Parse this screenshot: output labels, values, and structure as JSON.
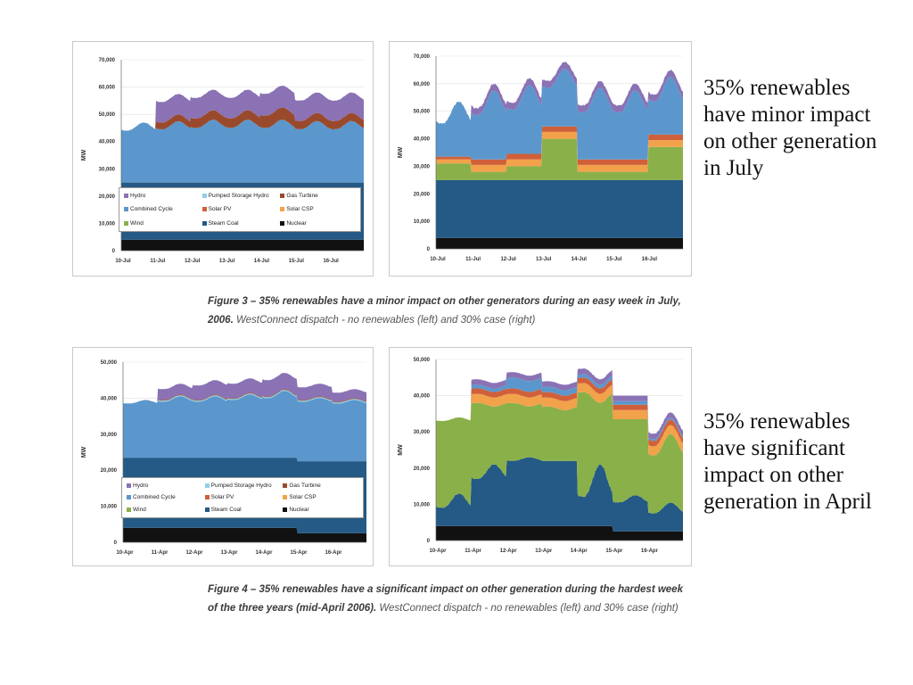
{
  "colors": {
    "nuclear": "#111111",
    "steam_coal": "#245a85",
    "wind": "#8ab04a",
    "solar_csp": "#f2a24a",
    "solar_pv": "#d0603a",
    "combined_cycle": "#5b97cc",
    "gas_turbine": "#9a4a2c",
    "pumped_storage": "#8fd0e8",
    "hydro": "#8a72b4"
  },
  "legend_items": [
    "Hydro",
    "Pumped Storage Hydro",
    "Gas Turbine",
    "Combined Cycle",
    "Solar PV",
    "Solar CSP",
    "Wind",
    "Steam Coal",
    "Nuclear"
  ],
  "legend_keys": [
    "hydro",
    "pumped_storage",
    "gas_turbine",
    "combined_cycle",
    "solar_pv",
    "solar_csp",
    "wind",
    "steam_coal",
    "nuclear"
  ],
  "figure3": {
    "caption_bold": "Figure 3 – 35% renewables have a minor impact on other generators during an easy week in July, 2006.",
    "caption_rest": " WestConnect dispatch - no renewables (left) and 30% case (right)"
  },
  "figure4": {
    "caption_bold": "Figure 4 – 35% renewables have a significant impact on other generation during the hardest week of the three years (mid-April 2006).",
    "caption_rest": " WestConnect dispatch - no renewables (left) and 30% case (right)"
  },
  "side_notes": {
    "july": "35% renewables have minor impact on other generation in July",
    "april": "35% renewables have significant impact on other generation in April"
  },
  "chart_data": [
    {
      "type": "area",
      "ylabel": "MW",
      "ylim": [
        0,
        70000
      ],
      "yticks": [
        "0",
        "10,000",
        "20,000",
        "30,000",
        "40,000",
        "50,000",
        "60,000",
        "70,000"
      ],
      "categories": [
        "10-Jul",
        "11-Jul",
        "12-Jul",
        "13-Jul",
        "14-Jul",
        "15-Jul",
        "16-Jul"
      ],
      "legend": "inside-bottom",
      "series": [
        {
          "name": "Nuclear",
          "key": "nuclear",
          "values": [
            4000,
            4000,
            4000,
            4000,
            4000,
            4000,
            4000
          ]
        },
        {
          "name": "Steam Coal",
          "key": "steam_coal",
          "values": [
            21000,
            21000,
            21000,
            21000,
            21000,
            21000,
            21000
          ]
        },
        {
          "name": "Combined Cycle",
          "key": "combined_cycle",
          "values": [
            [
              19000,
              19500,
              20000,
              20000,
              20000,
              19500,
              19500
            ],
            [
              22000,
              22500,
              23000,
              23000,
              23000,
              22500,
              22500
            ]
          ]
        },
        {
          "name": "Gas Turbine",
          "key": "gas_turbine",
          "values": [
            [
              0,
              2500,
              3500,
              3500,
              4500,
              3000,
              3000
            ],
            [
              0,
              2500,
              3500,
              3500,
              4500,
              3000,
              3000
            ]
          ]
        },
        {
          "name": "Hydro",
          "key": "hydro",
          "values": [
            [
              0,
              7500,
              7500,
              7500,
              8000,
              7500,
              7500
            ],
            [
              0,
              7500,
              7500,
              7500,
              8000,
              7500,
              7500
            ]
          ]
        }
      ]
    },
    {
      "type": "area",
      "ylabel": "MW",
      "ylim": [
        0,
        70000
      ],
      "yticks": [
        "0",
        "10,000",
        "20,000",
        "30,000",
        "40,000",
        "50,000",
        "60,000",
        "70,000"
      ],
      "categories": [
        "10-Jul",
        "11-Jul",
        "12-Jul",
        "13-Jul",
        "14-Jul",
        "15-Jul",
        "16-Jul"
      ],
      "series": [
        {
          "name": "Nuclear",
          "key": "nuclear",
          "values": [
            4000,
            4000,
            4000,
            4000,
            4000,
            4000,
            4000
          ]
        },
        {
          "name": "Steam Coal",
          "key": "steam_coal",
          "values": [
            21000,
            21000,
            21000,
            21000,
            21000,
            21000,
            21000
          ]
        },
        {
          "name": "Wind",
          "key": "wind",
          "values": [
            [
              6000,
              3000,
              5000,
              15000,
              3000,
              3000,
              12000
            ],
            [
              6000,
              3000,
              5000,
              15000,
              3000,
              3000,
              12000
            ]
          ]
        },
        {
          "name": "Solar CSP",
          "key": "solar_csp",
          "values": [
            [
              1500,
              2500,
              2500,
              2500,
              2500,
              2500,
              2500
            ],
            [
              1500,
              2500,
              2500,
              2500,
              2500,
              2500,
              2500
            ]
          ]
        },
        {
          "name": "Solar PV",
          "key": "solar_pv",
          "values": [
            [
              1000,
              2000,
              2000,
              2000,
              2000,
              2000,
              2000
            ],
            [
              1000,
              2000,
              2000,
              2000,
              2000,
              2000,
              2000
            ]
          ]
        },
        {
          "name": "Combined Cycle",
          "key": "combined_cycle",
          "values": [
            [
              12000,
              16000,
              16000,
              14000,
              17000,
              17000,
              12000
            ],
            [
              20000,
              25000,
              25000,
              21000,
              26000,
              25000,
              21000
            ]
          ]
        },
        {
          "name": "Hydro",
          "key": "hydro",
          "values": [
            [
              0,
              2500,
              2500,
              2500,
              2500,
              2500,
              2500
            ],
            [
              0,
              2500,
              2500,
              2500,
              2500,
              2500,
              2500
            ]
          ]
        }
      ]
    },
    {
      "type": "area",
      "ylabel": "MW",
      "ylim": [
        0,
        50000
      ],
      "yticks": [
        "0",
        "10,000",
        "20,000",
        "30,000",
        "40,000",
        "50,000"
      ],
      "categories": [
        "10-Apr",
        "11-Apr",
        "12-Apr",
        "13-Apr",
        "14-Apr",
        "15-Apr",
        "16-Apr"
      ],
      "legend": "inside-bottom",
      "series": [
        {
          "name": "Nuclear",
          "key": "nuclear",
          "values": [
            4000,
            4000,
            4000,
            4000,
            4000,
            2500,
            2500
          ]
        },
        {
          "name": "Steam Coal",
          "key": "steam_coal",
          "values": [
            19500,
            19500,
            19500,
            19500,
            19500,
            20000,
            20000
          ]
        },
        {
          "name": "Combined Cycle",
          "key": "combined_cycle",
          "values": [
            [
              15000,
              15500,
              15500,
              16000,
              16500,
              16500,
              16000
            ],
            [
              16000,
              17000,
              17000,
              17500,
              18500,
              17500,
              17000
            ]
          ]
        },
        {
          "name": "Pumped Storage Hydro",
          "key": "pumped_storage",
          "values": [
            [
              0,
              300,
              300,
              300,
              300,
              300,
              300
            ],
            [
              0,
              300,
              300,
              300,
              300,
              300,
              300
            ]
          ]
        },
        {
          "name": "Gas Turbine",
          "key": "gas_turbine",
          "values": [
            [
              0,
              200,
              200,
              200,
              200,
              200,
              200
            ],
            [
              0,
              200,
              200,
              200,
              200,
              200,
              200
            ]
          ]
        },
        {
          "name": "Hydro",
          "key": "hydro",
          "values": [
            [
              0,
              3000,
              4000,
              4000,
              4500,
              3500,
              2500
            ],
            [
              0,
              3000,
              4000,
              4000,
              4500,
              3500,
              2500
            ]
          ]
        }
      ]
    },
    {
      "type": "area",
      "ylabel": "MW",
      "ylim": [
        0,
        50000
      ],
      "yticks": [
        "0",
        "10,000",
        "20,000",
        "30,000",
        "40,000",
        "50,000"
      ],
      "categories": [
        "10-Apr",
        "11-Apr",
        "12-Apr",
        "13-Apr",
        "14-Apr",
        "15-Apr",
        "16-Apr"
      ],
      "series": [
        {
          "name": "Nuclear",
          "key": "nuclear",
          "values": [
            4000,
            4000,
            4000,
            4000,
            4000,
            2500,
            2500
          ]
        },
        {
          "name": "Steam Coal",
          "key": "steam_coal",
          "values": [
            [
              5000,
              13000,
              18000,
              18000,
              8000,
              8000,
              5000
            ],
            [
              9000,
              17000,
              19000,
              18000,
              17000,
              10000,
              8000
            ]
          ]
        },
        {
          "name": "Wind",
          "key": "wind",
          "values": [
            [
              24000,
              21000,
              16000,
              15000,
              29000,
              23000,
              16000
            ],
            [
              21000,
              16000,
              14000,
              14000,
              17000,
              21000,
              19000
            ]
          ]
        },
        {
          "name": "Solar CSP",
          "key": "solar_csp",
          "values": [
            [
              0,
              2500,
              2500,
              2500,
              2500,
              2500,
              2500
            ],
            [
              0,
              2500,
              2500,
              2500,
              2500,
              2500,
              2500
            ]
          ]
        },
        {
          "name": "Solar PV",
          "key": "solar_pv",
          "values": [
            [
              0,
              1500,
              1500,
              1500,
              1500,
              1500,
              1500
            ],
            [
              0,
              1500,
              1500,
              1500,
              1500,
              1500,
              1500
            ]
          ]
        },
        {
          "name": "Combined Cycle",
          "key": "combined_cycle",
          "values": [
            [
              0,
              1000,
              3000,
              1500,
              1000,
              1000,
              500
            ],
            [
              0,
              1000,
              3000,
              1500,
              1000,
              1000,
              500
            ]
          ]
        },
        {
          "name": "Hydro",
          "key": "hydro",
          "values": [
            [
              0,
              1500,
              1500,
              1500,
              1500,
              1500,
              1500
            ],
            [
              0,
              1500,
              1500,
              1500,
              1500,
              1500,
              1500
            ]
          ]
        }
      ]
    }
  ]
}
